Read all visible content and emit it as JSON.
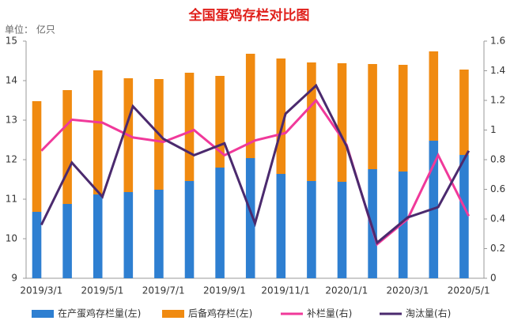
{
  "chart_data": {
    "type": "bar",
    "title": "全国蛋鸡存栏对比图",
    "y_unit_label": "单位：  亿只",
    "categories": [
      "2019/3/1",
      null,
      "2019/5/1",
      null,
      "2019/7/1",
      null,
      "2019/9/1",
      null,
      "2019/11/1",
      null,
      "2020/1/1",
      null,
      "2020/3/1",
      null,
      "2020/5/1"
    ],
    "series": [
      {
        "name": "在产蛋鸡存栏量(左)",
        "color": "#2e7fd1",
        "type": "bar",
        "values": [
          10.68,
          10.88,
          11.12,
          11.18,
          11.24,
          11.46,
          11.8,
          12.04,
          11.64,
          11.46,
          11.44,
          11.76,
          11.7,
          12.48,
          12.12
        ]
      },
      {
        "name": "后备鸡存栏(左)",
        "color": "#f08a10",
        "type": "bar",
        "values": [
          2.8,
          2.88,
          3.14,
          2.88,
          2.8,
          2.74,
          2.32,
          2.64,
          2.92,
          3.0,
          3.0,
          2.66,
          2.7,
          2.26,
          2.16
        ]
      },
      {
        "name": "补栏量(右)",
        "color": "#f0399a",
        "type": "line",
        "axis": "y2",
        "values": [
          0.86,
          1.07,
          1.05,
          0.95,
          0.92,
          1.0,
          0.83,
          0.93,
          0.98,
          1.2,
          0.9,
          0.23,
          0.4,
          0.83,
          0.42
        ]
      },
      {
        "name": "淘汰量(右)",
        "color": "#4b2a6e",
        "type": "line",
        "axis": "y2",
        "values": [
          0.36,
          0.78,
          0.55,
          1.16,
          0.94,
          0.83,
          0.91,
          0.37,
          1.11,
          1.3,
          0.89,
          0.24,
          0.41,
          0.48,
          0.86
        ]
      }
    ],
    "ylim": [
      9,
      15
    ],
    "yticks": [
      9,
      10,
      11,
      12,
      13,
      14,
      15
    ],
    "y2lim": [
      0,
      1.6
    ],
    "y2ticks": [
      0,
      0.2,
      0.4,
      0.6,
      0.8,
      1,
      1.2,
      1.4,
      1.6
    ],
    "legend": "bottom"
  }
}
